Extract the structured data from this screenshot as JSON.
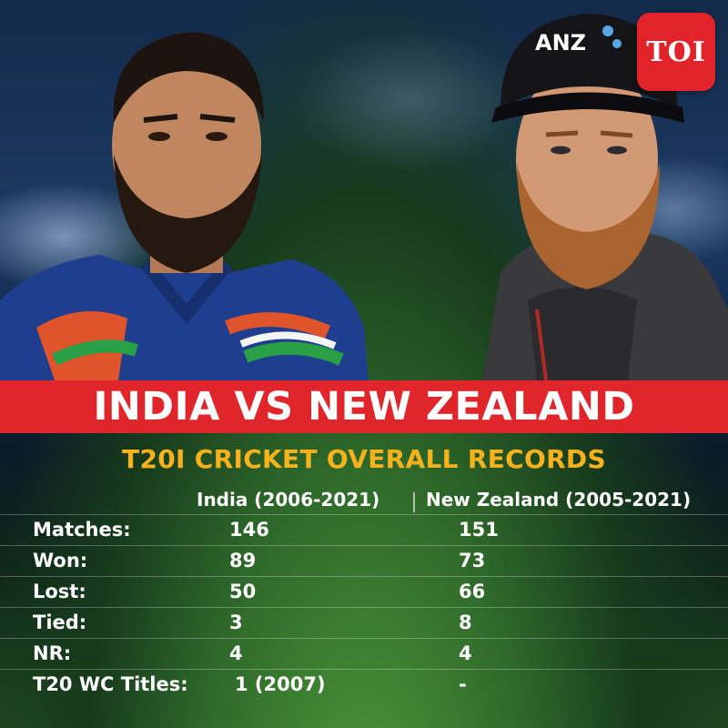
{
  "logo": {
    "text": "TOI",
    "color": "#e2232a"
  },
  "cap_logo": {
    "text": "ANZ"
  },
  "banner": {
    "title": "INDIA VS NEW ZEALAND",
    "color": "#e0262b"
  },
  "subtitle": {
    "text": "T20I CRICKET OVERALL RECORDS",
    "color": "#f5b21c"
  },
  "table": {
    "headers": {
      "india": "India (2006-2021)",
      "nz": "New Zealand (2005-2021)"
    },
    "rows": [
      {
        "label": "Matches:",
        "india": "146",
        "nz": "151"
      },
      {
        "label": "Won:",
        "india": "89",
        "nz": "73"
      },
      {
        "label": "Lost:",
        "india": "50",
        "nz": "66"
      },
      {
        "label": "Tied:",
        "india": "3",
        "nz": "8"
      },
      {
        "label": "NR:",
        "india": "4",
        "nz": "4"
      },
      {
        "label": "T20 WC Titles:",
        "india": "1 (2007)",
        "nz": "-"
      }
    ]
  }
}
